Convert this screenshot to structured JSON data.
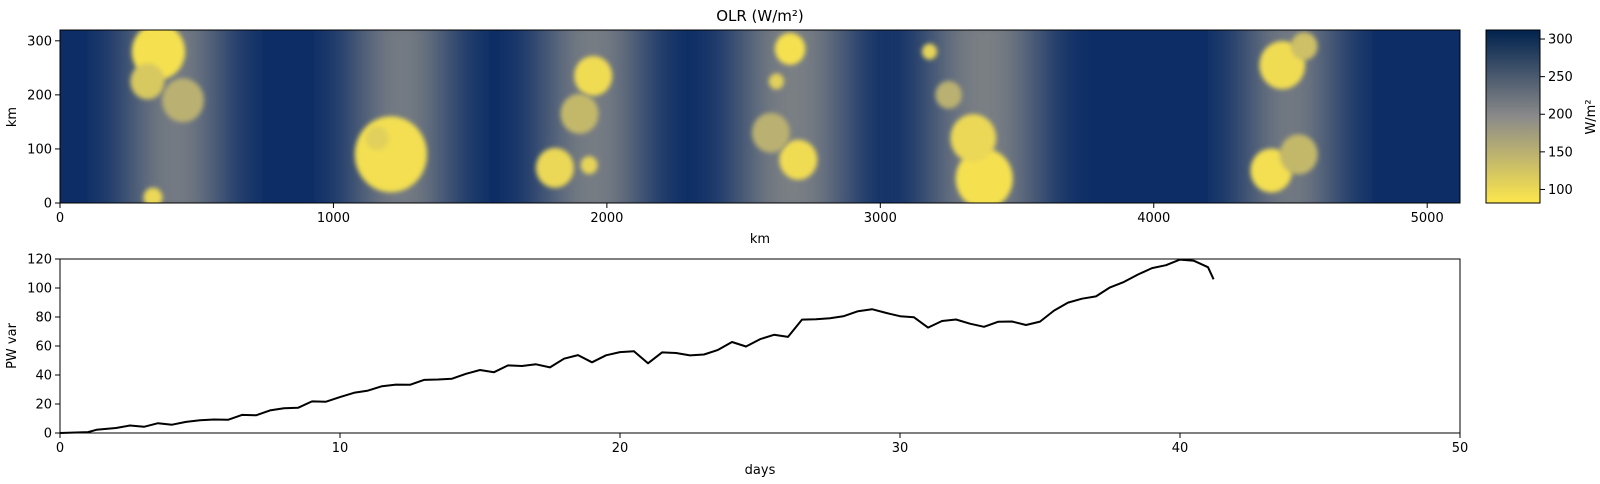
{
  "chart_data": [
    {
      "type": "heatmap",
      "title": "OLR (W/m²)",
      "xlabel": "km",
      "ylabel": "km",
      "xlim": [
        0,
        5120
      ],
      "ylim": [
        0,
        320
      ],
      "xticks": [
        "0",
        "1000",
        "2000",
        "3000",
        "4000",
        "5000"
      ],
      "yticks": [
        "0",
        "100",
        "200",
        "300"
      ],
      "colormap": [
        "#fde74c",
        "#8a8a8a",
        "#00224e"
      ],
      "colorbar": {
        "label": "W/m²",
        "range": [
          82,
          312
        ],
        "ticks": [
          "100",
          "150",
          "200",
          "250",
          "300"
        ]
      },
      "convective_bands_km": [
        {
          "center": 420,
          "width": 320
        },
        {
          "center": 1250,
          "width": 320
        },
        {
          "center": 1950,
          "width": 340
        },
        {
          "center": 2680,
          "width": 380
        },
        {
          "center": 3380,
          "width": 380
        },
        {
          "center": 4500,
          "width": 300
        }
      ],
      "cells": [
        {
          "x": 360,
          "y": 280,
          "r": 28,
          "v": 90
        },
        {
          "x": 320,
          "y": 225,
          "r": 18,
          "v": 120
        },
        {
          "x": 450,
          "y": 190,
          "r": 22,
          "v": 150
        },
        {
          "x": 340,
          "y": 10,
          "r": 10,
          "v": 100
        },
        {
          "x": 1210,
          "y": 90,
          "r": 38,
          "v": 92
        },
        {
          "x": 1160,
          "y": 120,
          "r": 12,
          "v": 110
        },
        {
          "x": 1950,
          "y": 235,
          "r": 20,
          "v": 95
        },
        {
          "x": 1900,
          "y": 165,
          "r": 20,
          "v": 140
        },
        {
          "x": 1810,
          "y": 65,
          "r": 20,
          "v": 100
        },
        {
          "x": 1935,
          "y": 70,
          "r": 9,
          "v": 105
        },
        {
          "x": 2670,
          "y": 285,
          "r": 16,
          "v": 90
        },
        {
          "x": 2620,
          "y": 225,
          "r": 8,
          "v": 110
        },
        {
          "x": 2700,
          "y": 80,
          "r": 20,
          "v": 95
        },
        {
          "x": 2600,
          "y": 130,
          "r": 20,
          "v": 150
        },
        {
          "x": 3380,
          "y": 45,
          "r": 30,
          "v": 90
        },
        {
          "x": 3340,
          "y": 120,
          "r": 24,
          "v": 100
        },
        {
          "x": 3180,
          "y": 280,
          "r": 8,
          "v": 105
        },
        {
          "x": 3250,
          "y": 200,
          "r": 14,
          "v": 150
        },
        {
          "x": 4470,
          "y": 255,
          "r": 24,
          "v": 95
        },
        {
          "x": 4430,
          "y": 60,
          "r": 22,
          "v": 92
        },
        {
          "x": 4550,
          "y": 290,
          "r": 14,
          "v": 130
        },
        {
          "x": 4530,
          "y": 90,
          "r": 20,
          "v": 140
        }
      ]
    },
    {
      "type": "line",
      "xlabel": "days",
      "ylabel": "PW var",
      "xlim": [
        0,
        50
      ],
      "ylim": [
        0,
        120
      ],
      "xticks": [
        "0",
        "10",
        "20",
        "30",
        "40",
        "50"
      ],
      "yticks": [
        "0",
        "20",
        "40",
        "60",
        "80",
        "100",
        "120"
      ],
      "x": [
        0,
        1,
        1.3,
        2,
        2.5,
        3,
        3.5,
        4,
        4.5,
        5,
        5.5,
        6,
        6.5,
        7,
        7.5,
        8,
        8.5,
        9,
        9.5,
        10,
        10.5,
        11,
        11.5,
        12,
        12.5,
        13,
        13.5,
        14,
        14.5,
        15,
        15.5,
        16,
        16.5,
        17,
        17.5,
        18,
        18.5,
        19,
        19.5,
        20,
        20.5,
        21,
        21.5,
        22,
        22.5,
        23,
        23.5,
        24,
        24.5,
        25,
        25.5,
        26,
        26.5,
        27,
        27.5,
        28,
        28.5,
        29,
        29.5,
        30,
        30.5,
        31,
        31.5,
        32,
        32.5,
        33,
        33.5,
        34,
        34.5,
        35,
        35.5,
        36,
        36.5,
        37,
        37.5,
        38,
        38.5,
        39,
        39.5,
        40,
        40.5,
        41,
        41.2
      ],
      "y": [
        0,
        0,
        3,
        3,
        5,
        5,
        6,
        6,
        8,
        8,
        10,
        9,
        12,
        13,
        15,
        17,
        18,
        21,
        22,
        25,
        27,
        30,
        32,
        33,
        34,
        36,
        37,
        38,
        40,
        44,
        42,
        46,
        47,
        47,
        45,
        52,
        53,
        49,
        54,
        55,
        57,
        48,
        55,
        56,
        53,
        54,
        58,
        62,
        60,
        65,
        67,
        67,
        78,
        78,
        80,
        80,
        84,
        86,
        82,
        81,
        80,
        72,
        78,
        78,
        75,
        74,
        76,
        77,
        75,
        76,
        85,
        90,
        92,
        95,
        100,
        104,
        110,
        113,
        116,
        120,
        118,
        115,
        106
      ]
    }
  ]
}
